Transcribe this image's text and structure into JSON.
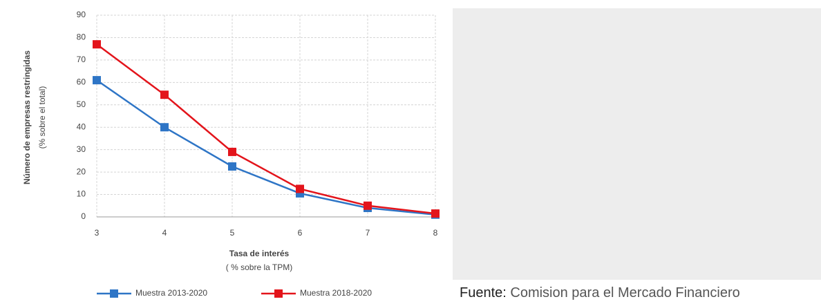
{
  "chart_data": {
    "type": "line",
    "y_label": "Número de empresas restringidas",
    "y_sublabel": "(% sobre el total)",
    "x_label": "Tasa de interés",
    "x_sublabel": "( % sobre la TPM)",
    "x": [
      3,
      4,
      5,
      6,
      7,
      8
    ],
    "series": [
      {
        "name": "Muestra 2013-2020",
        "color": "#2e75c6",
        "values": [
          61,
          40,
          22.5,
          10.5,
          4,
          1
        ]
      },
      {
        "name": "Muestra 2018-2020",
        "color": "#e3141b",
        "values": [
          77,
          54.5,
          29,
          12.5,
          5,
          1.5
        ]
      }
    ],
    "xlim": [
      3,
      8
    ],
    "xticks": [
      3,
      4,
      5,
      6,
      7,
      8
    ],
    "ylim": [
      0,
      90
    ],
    "yticks": [
      0,
      10,
      20,
      30,
      40,
      50,
      60,
      70,
      80,
      90
    ],
    "grid": true
  },
  "source": {
    "label": "Fuente:",
    "text": "Comision para el Mercado Financiero"
  }
}
